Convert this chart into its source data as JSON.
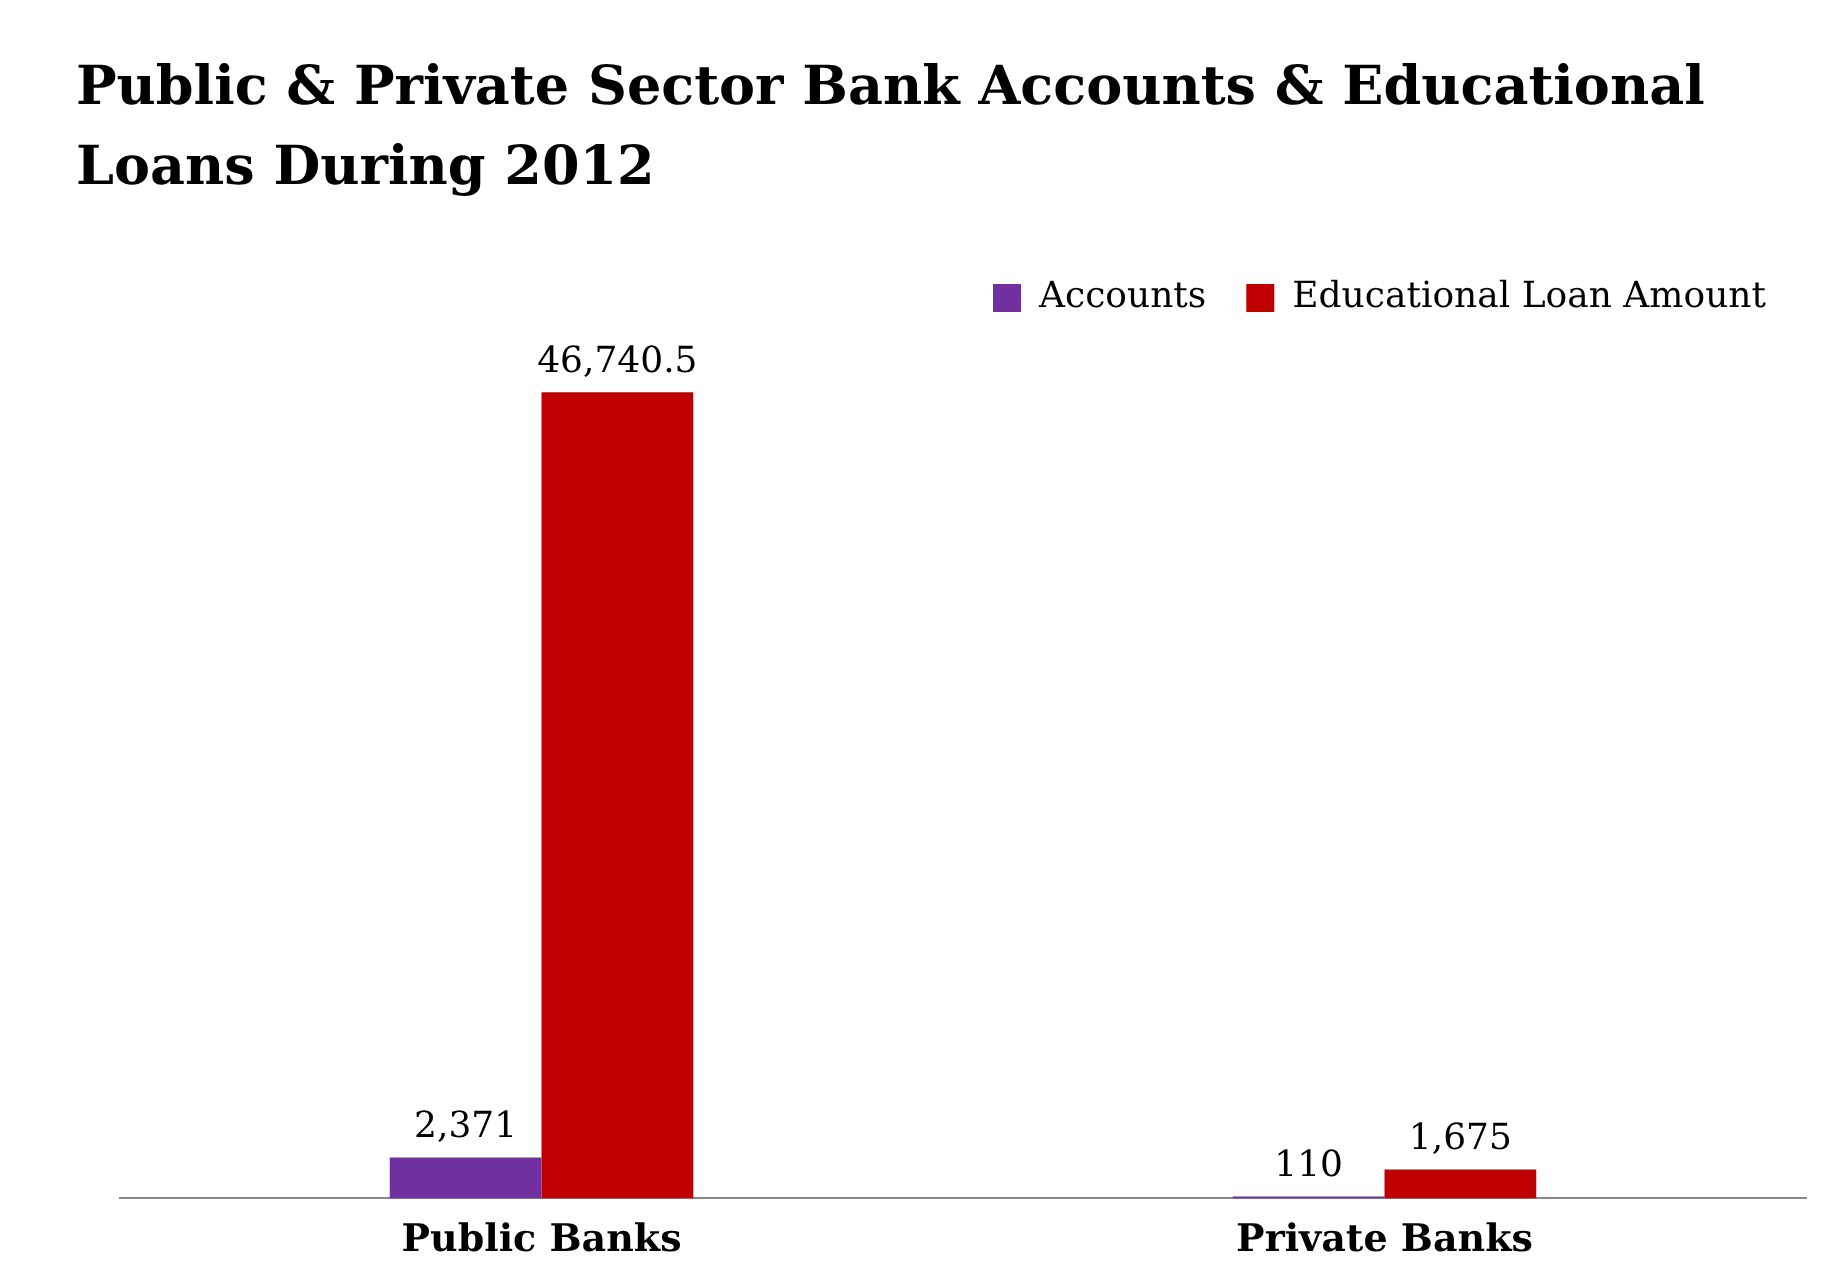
{
  "chart_data": {
    "type": "bar",
    "title": "Public & Private Sector Bank Accounts & Educational Loans During 2012",
    "categories": [
      "Public Banks",
      "Private Banks"
    ],
    "series": [
      {
        "name": "Accounts",
        "color": "#7030a0",
        "values": [
          2371,
          110
        ],
        "value_labels": [
          "2,371",
          "110"
        ]
      },
      {
        "name": "Educational Loan Amount",
        "color": "#c00000",
        "values": [
          46740.5,
          1675
        ],
        "value_labels": [
          "46,740.5",
          "1,675"
        ]
      }
    ],
    "grid": false,
    "legend": "top right"
  }
}
